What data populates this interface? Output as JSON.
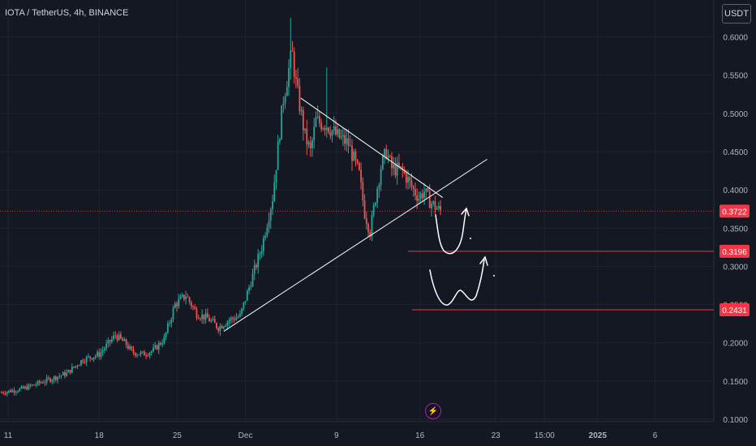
{
  "header": {
    "symbol_title": "IOTA / TetherUS, 4h, BINANCE",
    "currency_button": "USDT"
  },
  "colors": {
    "background": "#141823",
    "grid": "#1f2330",
    "up": "#26a69a",
    "down": "#ef5350",
    "axis_text": "#b2b5be",
    "price_tag": "#f23645",
    "drawing": "#ffffff",
    "level_line": "#f23645"
  },
  "chart_data": {
    "type": "candlestick",
    "symbol": "IOTA / TetherUS",
    "interval": "4h",
    "exchange": "BINANCE",
    "currency": "USDT",
    "ylim": [
      0.1,
      0.625
    ],
    "y_ticks": [
      "0.6000",
      "0.5500",
      "0.5000",
      "0.4500",
      "0.4000",
      "0.3500",
      "0.3000",
      "0.2500",
      "0.2000",
      "0.1500",
      "0.1000"
    ],
    "x_ticks": [
      "11",
      "18",
      "25",
      "Dec",
      "9",
      "16",
      "23",
      "15:00",
      "2025",
      "6"
    ],
    "x_ticks_bold": [
      "2025"
    ],
    "current_price": 0.3722,
    "levels": [
      0.3196,
      0.2431
    ],
    "price_path": [
      [
        0,
        0.135
      ],
      [
        2,
        0.14
      ],
      [
        4,
        0.15
      ],
      [
        6,
        0.16
      ],
      [
        7.5,
        0.178
      ],
      [
        9,
        0.185
      ],
      [
        10.5,
        0.21
      ],
      [
        11.5,
        0.198
      ],
      [
        12,
        0.188
      ],
      [
        13,
        0.185
      ],
      [
        14,
        0.19
      ],
      [
        15,
        0.205
      ],
      [
        16,
        0.25
      ],
      [
        17,
        0.262
      ],
      [
        18,
        0.238
      ],
      [
        19,
        0.232
      ],
      [
        20,
        0.22
      ],
      [
        21,
        0.23
      ],
      [
        22,
        0.235
      ],
      [
        23,
        0.28
      ],
      [
        24,
        0.325
      ],
      [
        25,
        0.39
      ],
      [
        26,
        0.52
      ],
      [
        26.8,
        0.58
      ],
      [
        27.2,
        0.535
      ],
      [
        28,
        0.47
      ],
      [
        28.5,
        0.45
      ],
      [
        29,
        0.49
      ],
      [
        30,
        0.485
      ],
      [
        31,
        0.47
      ],
      [
        32,
        0.46
      ],
      [
        33,
        0.42
      ],
      [
        33.5,
        0.37
      ],
      [
        34,
        0.345
      ],
      [
        34.5,
        0.39
      ],
      [
        35,
        0.43
      ],
      [
        35.5,
        0.45
      ],
      [
        36,
        0.428
      ],
      [
        37,
        0.425
      ],
      [
        38,
        0.4
      ],
      [
        38.5,
        0.39
      ],
      [
        39,
        0.398
      ],
      [
        39.5,
        0.385
      ],
      [
        40,
        0.378
      ],
      [
        40.5,
        0.3722
      ]
    ],
    "spikes": [
      {
        "x": 11,
        "high": 0.215
      },
      {
        "x": 26.7,
        "high": 0.625
      },
      {
        "x": 30,
        "high": 0.56
      }
    ],
    "trendlines": [
      {
        "from": [
          27.6,
          0.52
        ],
        "to": [
          40.7,
          0.39
        ]
      },
      {
        "from": [
          20.5,
          0.215
        ],
        "to": [
          44.8,
          0.44
        ]
      }
    ]
  }
}
